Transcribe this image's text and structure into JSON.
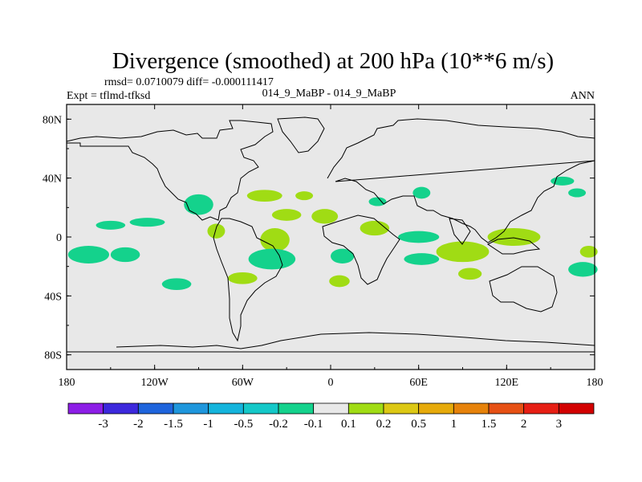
{
  "chart_data": {
    "type": "heatmap",
    "title": "Divergence (smoothed) at 200 hPa (10**6 m/s)",
    "rmsd_text": "rmsd= 0.0710079 diff= -0.000111417",
    "expt_text": "Expt = tflmd-tfksd",
    "case_text": "014_9_MaBP - 014_9_MaBP",
    "season_text": "ANN",
    "x_ticks": [
      "180",
      "120W",
      "60W",
      "0",
      "60E",
      "120E",
      "180"
    ],
    "y_ticks": [
      "80N",
      "40N",
      "0",
      "40S",
      "80S"
    ],
    "xlim": [
      -180,
      180
    ],
    "ylim": [
      -90,
      90
    ],
    "colorbar_labels": [
      "-3",
      "-2",
      "-1.5",
      "-1",
      "-0.5",
      "-0.2",
      "-0.1",
      "0.1",
      "0.2",
      "0.5",
      "1",
      "1.5",
      "2",
      "3"
    ],
    "colorbar_colors": [
      "#8c1de6",
      "#3c28dc",
      "#1e64dc",
      "#1e96dc",
      "#14b4dc",
      "#14c8c8",
      "#14d28c",
      "#e8e8e8",
      "#a0dc14",
      "#dcc814",
      "#e6aa0a",
      "#e6820a",
      "#e65014",
      "#e61e14",
      "#d20000"
    ],
    "field_blobs": [
      {
        "lon": -165,
        "lat": -12,
        "rx": 14,
        "ry": 6,
        "value": -0.15
      },
      {
        "lon": -140,
        "lat": -12,
        "rx": 10,
        "ry": 5,
        "value": -0.15
      },
      {
        "lon": -105,
        "lat": -32,
        "rx": 10,
        "ry": 4,
        "value": -0.15
      },
      {
        "lon": -150,
        "lat": 8,
        "rx": 10,
        "ry": 3,
        "value": -0.15
      },
      {
        "lon": -125,
        "lat": 10,
        "rx": 12,
        "ry": 3,
        "value": -0.15
      },
      {
        "lon": -90,
        "lat": 22,
        "rx": 10,
        "ry": 7,
        "value": -0.15
      },
      {
        "lon": -45,
        "lat": 28,
        "rx": 12,
        "ry": 4,
        "value": 0.15
      },
      {
        "lon": -18,
        "lat": 28,
        "rx": 6,
        "ry": 3,
        "value": 0.15
      },
      {
        "lon": -30,
        "lat": 15,
        "rx": 10,
        "ry": 4,
        "value": 0.15
      },
      {
        "lon": -4,
        "lat": 14,
        "rx": 9,
        "ry": 5,
        "value": 0.15
      },
      {
        "lon": -78,
        "lat": 4,
        "rx": 6,
        "ry": 5,
        "value": 0.15
      },
      {
        "lon": -38,
        "lat": -2,
        "rx": 10,
        "ry": 8,
        "value": 0.15
      },
      {
        "lon": -40,
        "lat": -15,
        "rx": 16,
        "ry": 7,
        "value": -0.15
      },
      {
        "lon": -60,
        "lat": -28,
        "rx": 10,
        "ry": 4,
        "value": 0.15
      },
      {
        "lon": 8,
        "lat": -13,
        "rx": 8,
        "ry": 5,
        "value": -0.15
      },
      {
        "lon": 6,
        "lat": -30,
        "rx": 7,
        "ry": 4,
        "value": 0.15
      },
      {
        "lon": 30,
        "lat": 6,
        "rx": 10,
        "ry": 5,
        "value": 0.15
      },
      {
        "lon": 60,
        "lat": 0,
        "rx": 14,
        "ry": 4,
        "value": -0.15
      },
      {
        "lon": 62,
        "lat": -15,
        "rx": 12,
        "ry": 4,
        "value": -0.15
      },
      {
        "lon": 90,
        "lat": -10,
        "rx": 18,
        "ry": 7,
        "value": 0.15
      },
      {
        "lon": 95,
        "lat": -25,
        "rx": 8,
        "ry": 4,
        "value": 0.15
      },
      {
        "lon": 125,
        "lat": 0,
        "rx": 18,
        "ry": 6,
        "value": 0.15
      },
      {
        "lon": 158,
        "lat": 38,
        "rx": 8,
        "ry": 3,
        "value": -0.15
      },
      {
        "lon": 168,
        "lat": 30,
        "rx": 6,
        "ry": 3,
        "value": -0.15
      },
      {
        "lon": 172,
        "lat": -22,
        "rx": 10,
        "ry": 5,
        "value": -0.15
      },
      {
        "lon": 176,
        "lat": -10,
        "rx": 6,
        "ry": 4,
        "value": 0.15
      },
      {
        "lon": 62,
        "lat": 30,
        "rx": 6,
        "ry": 4,
        "value": -0.15
      },
      {
        "lon": 32,
        "lat": 24,
        "rx": 6,
        "ry": 3,
        "value": -0.15
      }
    ]
  }
}
